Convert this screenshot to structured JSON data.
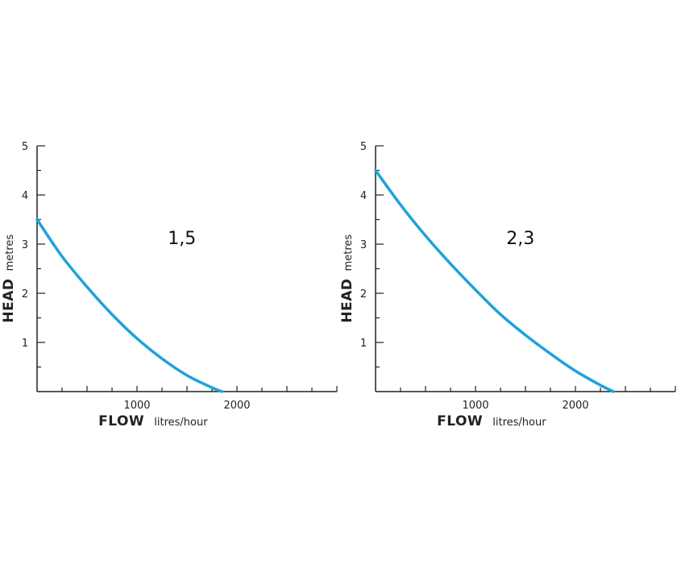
{
  "chart_data": [
    {
      "type": "line",
      "annotation": "1,5",
      "xlabel_main": "FLOW",
      "xlabel_unit": "litres/hour",
      "ylabel_main": "HEAD",
      "ylabel_unit": "metres",
      "xlim": [
        0,
        3000
      ],
      "ylim": [
        0,
        5
      ],
      "x_ticks": [
        1000,
        2000
      ],
      "y_ticks": [
        1,
        2,
        3,
        4,
        5
      ],
      "color": "#1ca3dc",
      "series": [
        {
          "x": [
            0,
            250,
            500,
            750,
            1000,
            1250,
            1500,
            1750,
            1850
          ],
          "y": [
            3.5,
            2.75,
            2.13,
            1.57,
            1.08,
            0.67,
            0.33,
            0.08,
            0.0
          ]
        }
      ]
    },
    {
      "type": "line",
      "annotation": "2,3",
      "xlabel_main": "FLOW",
      "xlabel_unit": "litres/hour",
      "ylabel_main": "HEAD",
      "ylabel_unit": "metres",
      "xlim": [
        0,
        3000
      ],
      "ylim": [
        0,
        5
      ],
      "x_ticks": [
        1000,
        2000
      ],
      "y_ticks": [
        1,
        2,
        3,
        4,
        5
      ],
      "color": "#1ca3dc",
      "series": [
        {
          "x": [
            0,
            250,
            500,
            750,
            1000,
            1250,
            1500,
            1750,
            2000,
            2250,
            2380
          ],
          "y": [
            4.5,
            3.8,
            3.17,
            2.6,
            2.07,
            1.57,
            1.15,
            0.77,
            0.42,
            0.13,
            0.0
          ]
        }
      ]
    }
  ]
}
